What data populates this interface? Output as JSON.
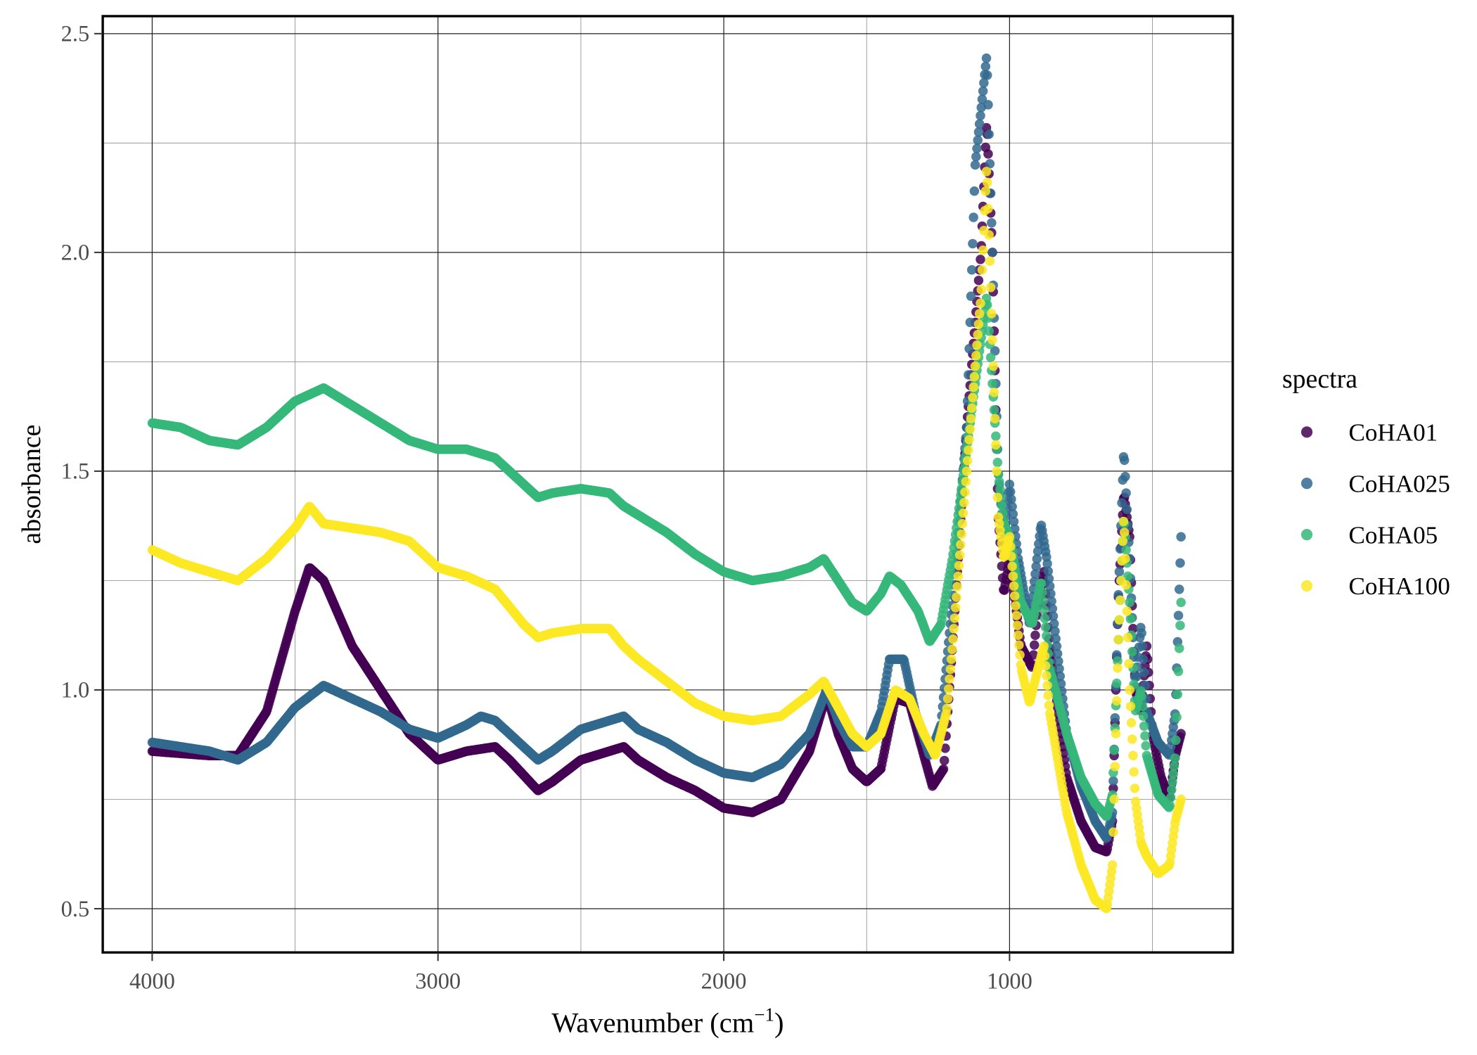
{
  "chart_data": {
    "type": "scatter",
    "title": "",
    "xlabel": "Wavenumber (cm",
    "xlabel_sup": "−1",
    "xlabel_close": ")",
    "ylabel": "absorbance",
    "xlim": [
      4173,
      219
    ],
    "x_reversed": true,
    "ylim": [
      0.4,
      2.54
    ],
    "x_ticks": [
      4000,
      3000,
      2000,
      1000
    ],
    "x_tick_labels": [
      "4000",
      "3000",
      "2000",
      "1000"
    ],
    "y_ticks": [
      0.5,
      1.0,
      1.5,
      2.0,
      2.5
    ],
    "y_tick_labels": [
      "0.5",
      "1.0",
      "1.5",
      "2.0",
      "2.5"
    ],
    "grid": true,
    "legend": {
      "title": "spectra",
      "position": "right"
    },
    "series": [
      {
        "name": "CoHA01",
        "color": "#440154",
        "points": [
          [
            4000,
            0.86
          ],
          [
            3800,
            0.85
          ],
          [
            3700,
            0.85
          ],
          [
            3600,
            0.95
          ],
          [
            3500,
            1.18
          ],
          [
            3450,
            1.28
          ],
          [
            3400,
            1.25
          ],
          [
            3300,
            1.1
          ],
          [
            3200,
            1.0
          ],
          [
            3100,
            0.9
          ],
          [
            3000,
            0.84
          ],
          [
            2900,
            0.86
          ],
          [
            2800,
            0.87
          ],
          [
            2750,
            0.84
          ],
          [
            2650,
            0.77
          ],
          [
            2600,
            0.79
          ],
          [
            2500,
            0.84
          ],
          [
            2400,
            0.86
          ],
          [
            2350,
            0.87
          ],
          [
            2300,
            0.84
          ],
          [
            2200,
            0.8
          ],
          [
            2100,
            0.77
          ],
          [
            2000,
            0.73
          ],
          [
            1900,
            0.72
          ],
          [
            1800,
            0.75
          ],
          [
            1700,
            0.86
          ],
          [
            1640,
            0.99
          ],
          [
            1600,
            0.9
          ],
          [
            1550,
            0.82
          ],
          [
            1500,
            0.79
          ],
          [
            1450,
            0.82
          ],
          [
            1400,
            0.98
          ],
          [
            1350,
            0.97
          ],
          [
            1300,
            0.85
          ],
          [
            1270,
            0.78
          ],
          [
            1230,
            0.82
          ],
          [
            1200,
            1.1
          ],
          [
            1150,
            1.6
          ],
          [
            1100,
            2.0
          ],
          [
            1080,
            2.3
          ],
          [
            1060,
            2.0
          ],
          [
            1040,
            1.4
          ],
          [
            1020,
            1.22
          ],
          [
            1000,
            1.3
          ],
          [
            960,
            1.1
          ],
          [
            920,
            1.05
          ],
          [
            900,
            1.2
          ],
          [
            880,
            1.27
          ],
          [
            860,
            1.1
          ],
          [
            800,
            0.8
          ],
          [
            750,
            0.7
          ],
          [
            700,
            0.64
          ],
          [
            660,
            0.63
          ],
          [
            640,
            0.7
          ],
          [
            620,
            1.2
          ],
          [
            600,
            1.45
          ],
          [
            580,
            1.35
          ],
          [
            560,
            1.0
          ],
          [
            540,
            0.95
          ],
          [
            520,
            1.1
          ],
          [
            500,
            0.9
          ],
          [
            470,
            0.8
          ],
          [
            440,
            0.75
          ],
          [
            420,
            0.85
          ],
          [
            400,
            0.9
          ]
        ]
      },
      {
        "name": "CoHA025",
        "color": "#31688e",
        "points": [
          [
            4000,
            0.88
          ],
          [
            3800,
            0.86
          ],
          [
            3700,
            0.84
          ],
          [
            3600,
            0.88
          ],
          [
            3500,
            0.96
          ],
          [
            3400,
            1.01
          ],
          [
            3300,
            0.98
          ],
          [
            3200,
            0.95
          ],
          [
            3100,
            0.91
          ],
          [
            3000,
            0.89
          ],
          [
            2900,
            0.92
          ],
          [
            2850,
            0.94
          ],
          [
            2800,
            0.93
          ],
          [
            2700,
            0.87
          ],
          [
            2650,
            0.84
          ],
          [
            2600,
            0.86
          ],
          [
            2500,
            0.91
          ],
          [
            2400,
            0.93
          ],
          [
            2350,
            0.94
          ],
          [
            2300,
            0.91
          ],
          [
            2200,
            0.88
          ],
          [
            2100,
            0.84
          ],
          [
            2000,
            0.81
          ],
          [
            1900,
            0.8
          ],
          [
            1800,
            0.83
          ],
          [
            1700,
            0.9
          ],
          [
            1640,
            1.0
          ],
          [
            1600,
            0.93
          ],
          [
            1550,
            0.87
          ],
          [
            1500,
            0.87
          ],
          [
            1450,
            0.95
          ],
          [
            1420,
            1.07
          ],
          [
            1370,
            1.07
          ],
          [
            1330,
            0.95
          ],
          [
            1280,
            0.85
          ],
          [
            1240,
            0.92
          ],
          [
            1200,
            1.2
          ],
          [
            1150,
            1.6
          ],
          [
            1120,
            2.2
          ],
          [
            1080,
            2.45
          ],
          [
            1060,
            2.0
          ],
          [
            1040,
            1.5
          ],
          [
            1020,
            1.35
          ],
          [
            1000,
            1.47
          ],
          [
            970,
            1.3
          ],
          [
            930,
            1.15
          ],
          [
            890,
            1.38
          ],
          [
            870,
            1.3
          ],
          [
            800,
            0.9
          ],
          [
            750,
            0.78
          ],
          [
            700,
            0.7
          ],
          [
            660,
            0.66
          ],
          [
            640,
            0.72
          ],
          [
            620,
            1.2
          ],
          [
            600,
            1.55
          ],
          [
            580,
            1.3
          ],
          [
            560,
            1.0
          ],
          [
            540,
            1.15
          ],
          [
            520,
            0.95
          ],
          [
            480,
            0.88
          ],
          [
            440,
            0.85
          ],
          [
            420,
            0.95
          ],
          [
            400,
            1.35
          ]
        ]
      },
      {
        "name": "CoHA05",
        "color": "#35b779",
        "points": [
          [
            4000,
            1.61
          ],
          [
            3900,
            1.6
          ],
          [
            3800,
            1.57
          ],
          [
            3700,
            1.56
          ],
          [
            3600,
            1.6
          ],
          [
            3500,
            1.66
          ],
          [
            3400,
            1.69
          ],
          [
            3300,
            1.65
          ],
          [
            3200,
            1.61
          ],
          [
            3100,
            1.57
          ],
          [
            3000,
            1.55
          ],
          [
            2900,
            1.55
          ],
          [
            2800,
            1.53
          ],
          [
            2700,
            1.47
          ],
          [
            2650,
            1.44
          ],
          [
            2600,
            1.45
          ],
          [
            2500,
            1.46
          ],
          [
            2400,
            1.45
          ],
          [
            2350,
            1.42
          ],
          [
            2300,
            1.4
          ],
          [
            2200,
            1.36
          ],
          [
            2100,
            1.31
          ],
          [
            2000,
            1.27
          ],
          [
            1900,
            1.25
          ],
          [
            1800,
            1.26
          ],
          [
            1700,
            1.28
          ],
          [
            1650,
            1.3
          ],
          [
            1600,
            1.25
          ],
          [
            1550,
            1.2
          ],
          [
            1500,
            1.18
          ],
          [
            1450,
            1.22
          ],
          [
            1420,
            1.26
          ],
          [
            1380,
            1.24
          ],
          [
            1320,
            1.18
          ],
          [
            1280,
            1.11
          ],
          [
            1240,
            1.15
          ],
          [
            1200,
            1.3
          ],
          [
            1150,
            1.55
          ],
          [
            1100,
            1.8
          ],
          [
            1080,
            1.9
          ],
          [
            1060,
            1.7
          ],
          [
            1040,
            1.5
          ],
          [
            1020,
            1.38
          ],
          [
            1000,
            1.35
          ],
          [
            960,
            1.2
          ],
          [
            920,
            1.15
          ],
          [
            890,
            1.25
          ],
          [
            860,
            1.05
          ],
          [
            800,
            0.9
          ],
          [
            750,
            0.8
          ],
          [
            700,
            0.74
          ],
          [
            660,
            0.71
          ],
          [
            640,
            0.76
          ],
          [
            620,
            1.1
          ],
          [
            600,
            1.4
          ],
          [
            580,
            1.2
          ],
          [
            560,
            0.95
          ],
          [
            540,
            1.0
          ],
          [
            520,
            0.85
          ],
          [
            480,
            0.76
          ],
          [
            440,
            0.73
          ],
          [
            420,
            0.85
          ],
          [
            400,
            1.2
          ]
        ]
      },
      {
        "name": "CoHA100",
        "color": "#fde725",
        "points": [
          [
            4000,
            1.32
          ],
          [
            3900,
            1.29
          ],
          [
            3800,
            1.27
          ],
          [
            3700,
            1.25
          ],
          [
            3600,
            1.3
          ],
          [
            3500,
            1.37
          ],
          [
            3450,
            1.42
          ],
          [
            3400,
            1.38
          ],
          [
            3300,
            1.37
          ],
          [
            3200,
            1.36
          ],
          [
            3100,
            1.34
          ],
          [
            3000,
            1.28
          ],
          [
            2900,
            1.26
          ],
          [
            2800,
            1.23
          ],
          [
            2700,
            1.15
          ],
          [
            2650,
            1.12
          ],
          [
            2600,
            1.13
          ],
          [
            2500,
            1.14
          ],
          [
            2400,
            1.14
          ],
          [
            2350,
            1.1
          ],
          [
            2300,
            1.07
          ],
          [
            2200,
            1.02
          ],
          [
            2100,
            0.97
          ],
          [
            2000,
            0.94
          ],
          [
            1900,
            0.93
          ],
          [
            1800,
            0.94
          ],
          [
            1700,
            0.99
          ],
          [
            1650,
            1.02
          ],
          [
            1600,
            0.96
          ],
          [
            1550,
            0.9
          ],
          [
            1500,
            0.87
          ],
          [
            1450,
            0.9
          ],
          [
            1400,
            1.0
          ],
          [
            1350,
            0.98
          ],
          [
            1300,
            0.9
          ],
          [
            1260,
            0.85
          ],
          [
            1220,
            0.95
          ],
          [
            1200,
            1.1
          ],
          [
            1150,
            1.5
          ],
          [
            1100,
            1.9
          ],
          [
            1080,
            2.2
          ],
          [
            1060,
            1.8
          ],
          [
            1040,
            1.4
          ],
          [
            1020,
            1.3
          ],
          [
            1000,
            1.35
          ],
          [
            960,
            1.05
          ],
          [
            930,
            0.97
          ],
          [
            900,
            1.05
          ],
          [
            880,
            1.1
          ],
          [
            860,
            0.95
          ],
          [
            800,
            0.72
          ],
          [
            750,
            0.6
          ],
          [
            700,
            0.52
          ],
          [
            660,
            0.5
          ],
          [
            640,
            0.6
          ],
          [
            620,
            1.1
          ],
          [
            600,
            1.4
          ],
          [
            580,
            1.0
          ],
          [
            560,
            0.75
          ],
          [
            540,
            0.65
          ],
          [
            520,
            0.62
          ],
          [
            480,
            0.58
          ],
          [
            440,
            0.6
          ],
          [
            420,
            0.7
          ],
          [
            400,
            0.75
          ]
        ]
      }
    ]
  }
}
